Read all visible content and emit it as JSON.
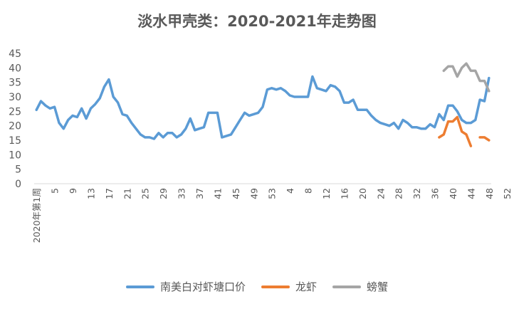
{
  "chart_data": {
    "type": "line",
    "title": "淡水甲壳类：2020-2021年走势图",
    "ylim": [
      0,
      45
    ],
    "y_ticks": [
      "0",
      "5",
      "10",
      "15",
      "20",
      "25",
      "30",
      "35",
      "40",
      "45"
    ],
    "x_tick_labels": [
      "2020年第1周",
      "5",
      "9",
      "13",
      "17",
      "21",
      "25",
      "29",
      "33",
      "37",
      "41",
      "45",
      "49",
      "53",
      "4",
      "8",
      "12",
      "16",
      "20",
      "24",
      "28",
      "32",
      "36",
      "40",
      "44",
      "48",
      "52"
    ],
    "x_tick_step": 4,
    "n_points": 101,
    "legend_position": "bottom",
    "grid": false,
    "series": [
      {
        "name": "南美白对虾塘口价",
        "color": "#5B9BD5",
        "start_index": 0,
        "values": [
          25.5,
          28.5,
          27.0,
          26.0,
          26.5,
          21.0,
          19.0,
          22.0,
          23.5,
          23.0,
          26.0,
          22.5,
          26.0,
          27.5,
          29.5,
          33.5,
          36.0,
          30.0,
          28.0,
          24.0,
          23.5,
          21.0,
          19.0,
          17.0,
          16.0,
          16.0,
          15.5,
          17.5,
          16.0,
          17.5,
          17.5,
          16.0,
          17.0,
          19.0,
          22.5,
          18.5,
          19.0,
          19.5,
          24.5,
          24.5,
          24.5,
          16.0,
          16.5,
          17.0,
          19.5,
          22.0,
          24.5,
          23.5,
          24.0,
          24.5,
          26.5,
          32.5,
          33.0,
          32.5,
          33.0,
          32.0,
          30.5,
          30.0,
          30.0,
          30.0,
          30.0,
          37.0,
          33.0,
          32.5,
          32.0,
          34.0,
          33.5,
          32.0,
          28.0,
          28.0,
          29.0,
          25.5,
          25.5,
          25.5,
          23.5,
          22.0,
          21.0,
          20.5,
          20.0,
          21.0,
          19.0,
          22.0,
          21.0,
          19.5,
          19.5,
          19.0,
          19.0,
          20.5,
          19.5,
          24.0,
          22.0,
          27.0,
          27.0,
          25.0,
          22.0,
          21.0,
          21.0,
          22.0,
          29.0,
          28.5,
          36.5
        ]
      },
      {
        "name": "龙虾",
        "color": "#ED7D31",
        "start_index": 89,
        "values": [
          16.0,
          17.0,
          21.5,
          21.5,
          23.0,
          18.0,
          17.0,
          13.0,
          null,
          16.0,
          16.0,
          15.0
        ]
      },
      {
        "name": "螃蟹",
        "color": "#A5A5A5",
        "start_index": 90,
        "values": [
          39.0,
          40.5,
          40.5,
          37.0,
          40.0,
          41.5,
          39.0,
          39.0,
          35.5,
          35.5,
          32.0
        ]
      }
    ]
  }
}
